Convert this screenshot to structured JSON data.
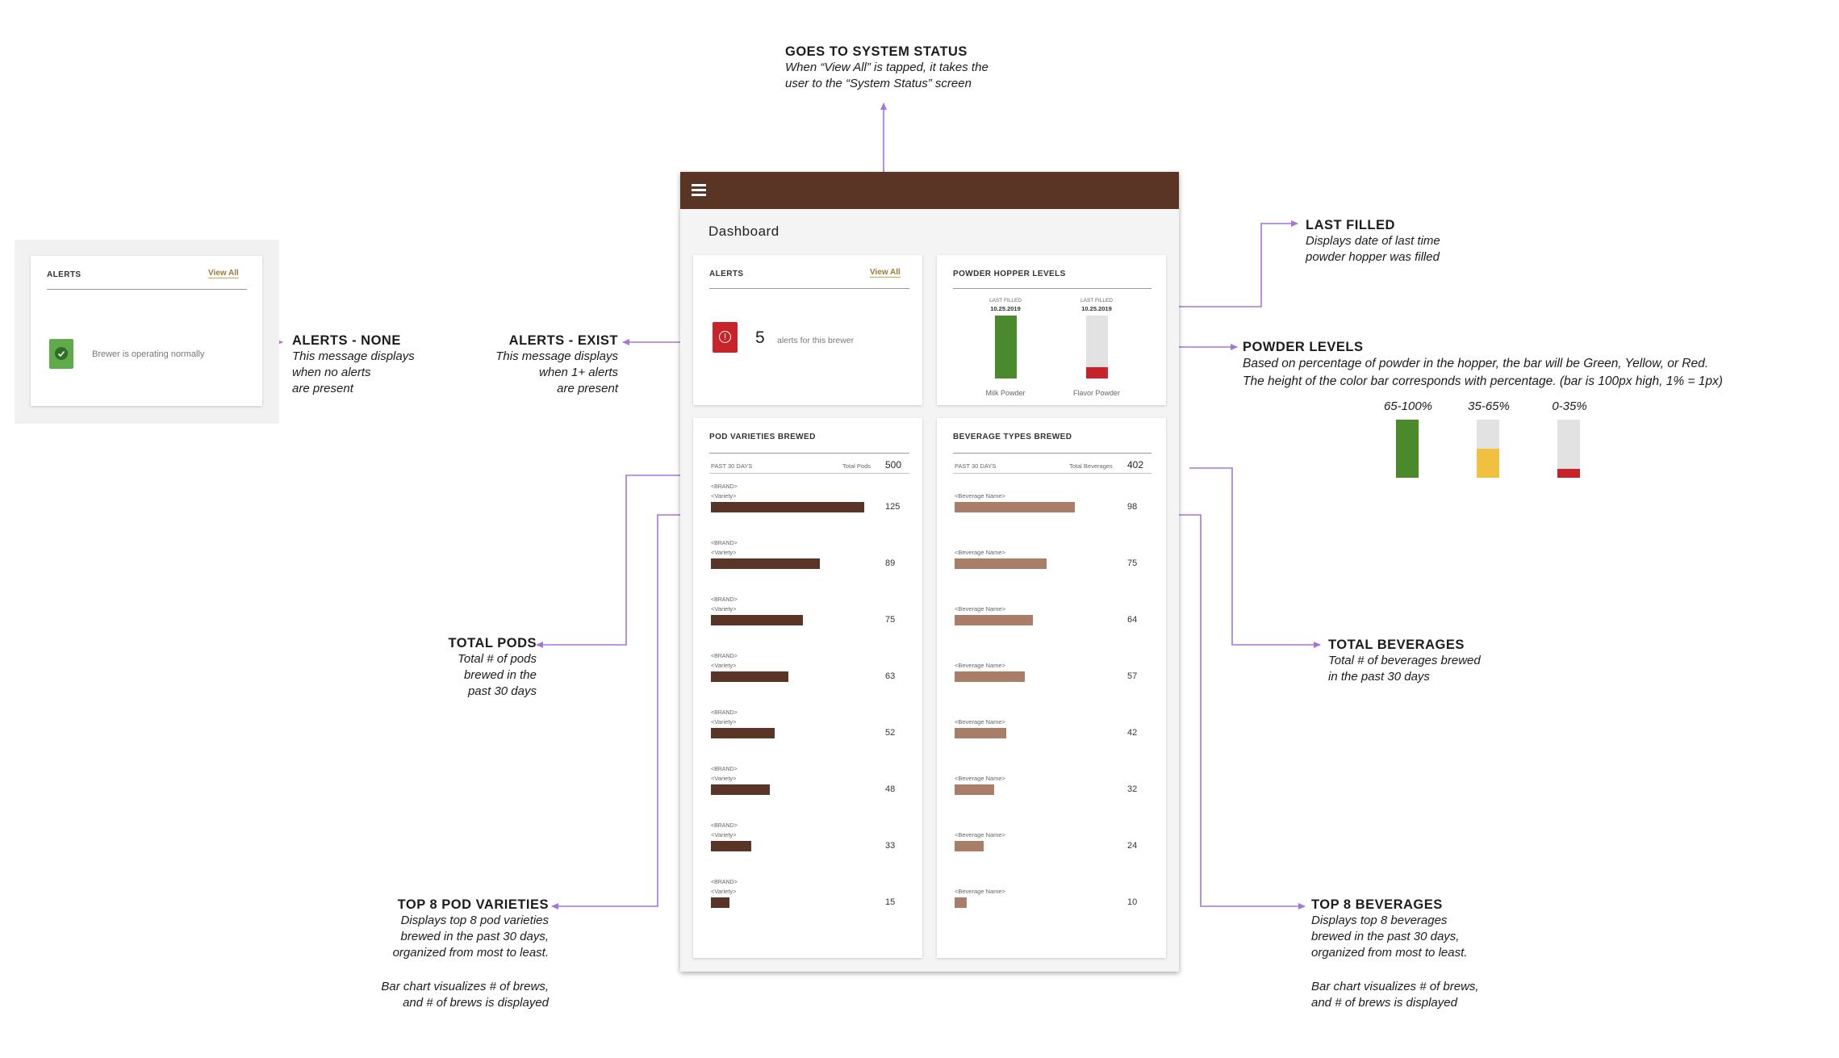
{
  "colors": {
    "brand_brown": "#5a3425",
    "pod_bar": "#5b3428",
    "bev_bar": "#a97e68",
    "accent_link": "#9a7a3a",
    "annotation_line": "#a576d8",
    "green": "#4a8a2c",
    "yellow": "#f0c040",
    "red": "#c8222a",
    "alert_ok_green": "#5faa4a"
  },
  "app": {
    "menu_icon": "hamburger-icon",
    "page_title": "Dashboard"
  },
  "alerts_none_card": {
    "title": "ALERTS",
    "view_all": "View All",
    "message": "Brewer is operating normally",
    "icon": "check-icon"
  },
  "alerts_card": {
    "title": "ALERTS",
    "view_all": "View All",
    "count": "5",
    "count_text": "alerts for this brewer",
    "icon": "alert-icon"
  },
  "powder_card": {
    "title": "POWDER HOPPER LEVELS",
    "hoppers": [
      {
        "last_filled_label": "LAST FILLED",
        "date": "10.25.2019",
        "name": "Milk Powder",
        "level_pct": 100,
        "color": "#4a8a2c"
      },
      {
        "last_filled_label": "LAST FILLED",
        "date": "10.25.2019",
        "name": "Flavor Powder",
        "level_pct": 18,
        "color": "#c8222a"
      }
    ]
  },
  "pods_card": {
    "title": "POD VARIETIES BREWED",
    "period": "PAST 30 DAYS",
    "total_label": "Total Pods",
    "total": "500",
    "brand_placeholder": "<BRAND>",
    "variety_placeholder": "<Variety>"
  },
  "beverages_card": {
    "title": "BEVERAGE TYPES BREWED",
    "period": "PAST 30 DAYS",
    "total_label": "Total Beverages",
    "total": "402",
    "name_placeholder": "<Beverage Name>"
  },
  "chart_data": [
    {
      "type": "bar",
      "title": "POD VARIETIES BREWED",
      "categories": [
        "<BRAND> <Variety>",
        "<BRAND> <Variety>",
        "<BRAND> <Variety>",
        "<BRAND> <Variety>",
        "<BRAND> <Variety>",
        "<BRAND> <Variety>",
        "<BRAND> <Variety>",
        "<BRAND> <Variety>"
      ],
      "values": [
        125,
        89,
        75,
        63,
        52,
        48,
        33,
        15
      ],
      "orientation": "horizontal"
    },
    {
      "type": "bar",
      "title": "BEVERAGE TYPES BREWED",
      "categories": [
        "<Beverage Name>",
        "<Beverage Name>",
        "<Beverage Name>",
        "<Beverage Name>",
        "<Beverage Name>",
        "<Beverage Name>",
        "<Beverage Name>",
        "<Beverage Name>"
      ],
      "values": [
        98,
        75,
        64,
        57,
        42,
        32,
        24,
        10
      ],
      "orientation": "horizontal"
    }
  ],
  "legend_levels": [
    {
      "label": "65-100%",
      "level_pct": 100,
      "color": "#4a8a2c"
    },
    {
      "label": "35-65%",
      "level_pct": 50,
      "color": "#f0c040"
    },
    {
      "label": "0-35%",
      "level_pct": 15,
      "color": "#c8222a"
    }
  ],
  "annotations": {
    "system_status": {
      "title": "GOES TO SYSTEM STATUS",
      "lines": [
        "When “View All” is tapped, it takes the",
        "user to the “System Status” screen"
      ]
    },
    "last_filled": {
      "title": "LAST FILLED",
      "lines": [
        "Displays date of last time",
        "powder hopper was filled"
      ]
    },
    "powder_levels": {
      "title": "POWDER LEVELS",
      "lines": [
        "Based on percentage of powder in the hopper, the bar will be Green, Yellow, or Red.",
        "The height of the color bar corresponds with percentage. (bar is 100px high, 1% = 1px)"
      ]
    },
    "alerts_none": {
      "title": "ALERTS - NONE",
      "lines": [
        "This message displays",
        "when no alerts",
        "are present"
      ]
    },
    "alerts_exist": {
      "title": "ALERTS - EXIST",
      "lines": [
        "This message displays",
        "when 1+ alerts",
        "are present"
      ]
    },
    "total_pods": {
      "title": "TOTAL PODS",
      "lines": [
        "Total # of pods",
        "brewed in the",
        "past 30 days"
      ]
    },
    "total_beverages": {
      "title": "TOTAL BEVERAGES",
      "lines": [
        "Total # of beverages brewed",
        "in the past 30 days"
      ]
    },
    "top8_pods": {
      "title": "TOP 8 POD VARIETIES",
      "lines": [
        "Displays top 8 pod varieties",
        "brewed in the past 30 days,",
        "organized from most to least.",
        "",
        "Bar chart visualizes # of brews,",
        "and # of brews is displayed"
      ]
    },
    "top8_beverages": {
      "title": "TOP 8 BEVERAGES",
      "lines": [
        "Displays top 8 beverages",
        "brewed in the past 30 days,",
        "organized from most to least.",
        "",
        "Bar chart visualizes # of brews,",
        "and # of brews is displayed"
      ]
    }
  }
}
